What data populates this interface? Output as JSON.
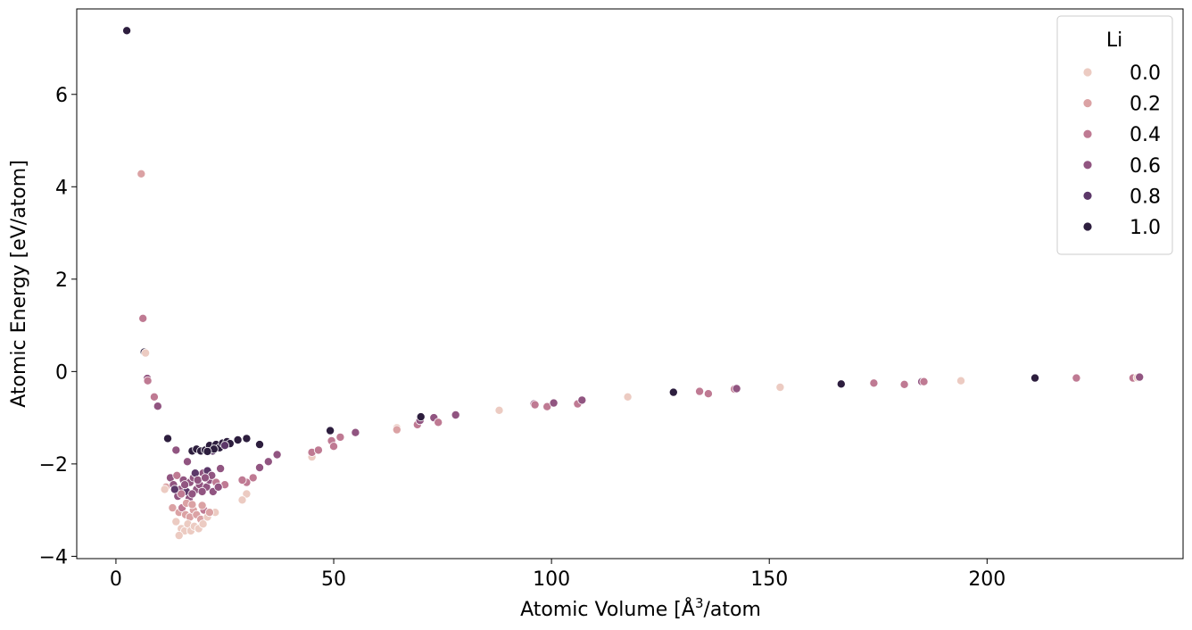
{
  "chart_data": {
    "type": "scatter",
    "xlabel_main": "Atomic Volume [Å",
    "xlabel_sup": "3",
    "xlabel_tail": "/atom",
    "ylabel": "Atomic Energy [eV/atom]",
    "xlim": [
      -9,
      245
    ],
    "ylim": [
      -4.05,
      7.85
    ],
    "xticks": [
      0,
      50,
      100,
      150,
      200
    ],
    "yticks": [
      -4,
      -2,
      0,
      2,
      4,
      6
    ],
    "ytick_labels": [
      "−4",
      "−2",
      "0",
      "2",
      "4",
      "6"
    ],
    "grid": false,
    "legend": {
      "title": "Li",
      "placement": "top-right",
      "entries": [
        {
          "label": "0.0",
          "value": 0.0,
          "color": "#eccbc2"
        },
        {
          "label": "0.2",
          "value": 0.2,
          "color": "#dba2a4"
        },
        {
          "label": "0.4",
          "value": 0.4,
          "color": "#bf7a93"
        },
        {
          "label": "0.6",
          "value": 0.6,
          "color": "#915581"
        },
        {
          "label": "0.8",
          "value": 0.8,
          "color": "#5c3869"
        },
        {
          "label": "1.0",
          "value": 1.0,
          "color": "#2d1e3e"
        }
      ]
    },
    "points": [
      [
        2.5,
        7.38,
        1.0
      ],
      [
        5.8,
        4.28,
        0.2
      ],
      [
        6.2,
        1.15,
        0.4
      ],
      [
        6.5,
        0.42,
        1.0
      ],
      [
        6.8,
        0.4,
        0.0
      ],
      [
        7.2,
        -0.15,
        0.6
      ],
      [
        7.3,
        -0.2,
        0.4
      ],
      [
        8.8,
        -0.55,
        0.4
      ],
      [
        9.6,
        -0.75,
        0.6
      ],
      [
        11.9,
        -1.45,
        1.0
      ],
      [
        11.5,
        -2.5,
        0.2
      ],
      [
        11.2,
        -2.55,
        0.0
      ],
      [
        13.8,
        -1.7,
        0.6
      ],
      [
        16.4,
        -1.95,
        0.6
      ],
      [
        12.5,
        -2.3,
        0.6
      ],
      [
        13.2,
        -2.45,
        0.6
      ],
      [
        14.0,
        -2.25,
        0.4
      ],
      [
        14.8,
        -2.55,
        0.6
      ],
      [
        15.5,
        -2.35,
        0.6
      ],
      [
        16.2,
        -2.6,
        0.8
      ],
      [
        17.0,
        -2.4,
        0.6
      ],
      [
        17.8,
        -2.3,
        0.6
      ],
      [
        18.5,
        -2.55,
        0.6
      ],
      [
        19.2,
        -2.45,
        0.6
      ],
      [
        20.0,
        -2.2,
        0.6
      ],
      [
        20.8,
        -2.5,
        0.6
      ],
      [
        21.5,
        -2.35,
        0.6
      ],
      [
        22.3,
        -2.6,
        0.6
      ],
      [
        23.0,
        -2.4,
        0.4
      ],
      [
        24.0,
        -2.1,
        0.6
      ],
      [
        25.0,
        -2.45,
        0.4
      ],
      [
        14.2,
        -2.7,
        0.6
      ],
      [
        15.0,
        -2.65,
        0.4
      ],
      [
        16.8,
        -2.75,
        0.6
      ],
      [
        17.5,
        -2.65,
        0.6
      ],
      [
        18.2,
        -2.2,
        0.8
      ],
      [
        19.8,
        -2.6,
        0.6
      ],
      [
        21.0,
        -2.15,
        0.8
      ],
      [
        22.0,
        -2.25,
        0.6
      ],
      [
        13.5,
        -2.55,
        0.8
      ],
      [
        15.8,
        -2.45,
        0.6
      ],
      [
        18.8,
        -2.35,
        0.6
      ],
      [
        20.5,
        -2.3,
        0.6
      ],
      [
        23.5,
        -2.5,
        0.6
      ],
      [
        13.0,
        -2.95,
        0.2
      ],
      [
        14.5,
        -3.05,
        0.2
      ],
      [
        15.2,
        -2.95,
        0.4
      ],
      [
        16.0,
        -3.1,
        0.2
      ],
      [
        17.0,
        -3.15,
        0.2
      ],
      [
        17.8,
        -3.0,
        0.2
      ],
      [
        18.5,
        -3.1,
        0.2
      ],
      [
        19.5,
        -3.2,
        0.2
      ],
      [
        20.2,
        -3.0,
        0.4
      ],
      [
        21.0,
        -3.15,
        0.0
      ],
      [
        22.8,
        -3.05,
        0.0
      ],
      [
        13.8,
        -3.25,
        0.0
      ],
      [
        15.0,
        -3.4,
        0.0
      ],
      [
        15.8,
        -3.45,
        0.0
      ],
      [
        16.5,
        -3.3,
        0.0
      ],
      [
        17.2,
        -3.45,
        0.0
      ],
      [
        18.0,
        -3.35,
        0.0
      ],
      [
        19.0,
        -3.4,
        0.0
      ],
      [
        20.0,
        -3.3,
        0.0
      ],
      [
        14.5,
        -3.55,
        0.0
      ],
      [
        16.2,
        -2.85,
        0.2
      ],
      [
        19.8,
        -2.9,
        0.2
      ],
      [
        21.5,
        -3.05,
        0.2
      ],
      [
        17.5,
        -2.88,
        0.2
      ],
      [
        17.5,
        -1.72,
        1.0
      ],
      [
        18.5,
        -1.68,
        1.0
      ],
      [
        19.5,
        -1.72,
        1.0
      ],
      [
        20.5,
        -1.7,
        1.0
      ],
      [
        21.5,
        -1.6,
        1.0
      ],
      [
        22.2,
        -1.72,
        0.8
      ],
      [
        23.0,
        -1.58,
        1.0
      ],
      [
        23.8,
        -1.65,
        1.0
      ],
      [
        24.5,
        -1.55,
        1.0
      ],
      [
        25.5,
        -1.52,
        1.0
      ],
      [
        26.2,
        -1.56,
        1.0
      ],
      [
        22.5,
        -1.68,
        1.0
      ],
      [
        21.0,
        -1.73,
        1.0
      ],
      [
        25.0,
        -1.6,
        0.8
      ],
      [
        28.0,
        -1.48,
        1.0
      ],
      [
        30.0,
        -1.45,
        1.0
      ],
      [
        33.0,
        -1.58,
        1.0
      ],
      [
        37.0,
        -1.8,
        0.6
      ],
      [
        35.0,
        -1.95,
        0.6
      ],
      [
        33.0,
        -2.08,
        0.6
      ],
      [
        31.5,
        -2.3,
        0.4
      ],
      [
        30.0,
        -2.4,
        0.4
      ],
      [
        29.0,
        -2.35,
        0.4
      ],
      [
        30.0,
        -2.65,
        0.0
      ],
      [
        29.0,
        -2.78,
        0.0
      ],
      [
        45.0,
        -1.85,
        0.0
      ],
      [
        45.0,
        -1.75,
        0.4
      ],
      [
        46.5,
        -1.7,
        0.4
      ],
      [
        49.2,
        -1.28,
        1.0
      ],
      [
        49.5,
        -1.5,
        0.4
      ],
      [
        50.0,
        -1.62,
        0.4
      ],
      [
        51.5,
        -1.42,
        0.4
      ],
      [
        55.0,
        -1.32,
        0.6
      ],
      [
        64.5,
        -1.22,
        0.0
      ],
      [
        64.5,
        -1.26,
        0.2
      ],
      [
        69.2,
        -1.15,
        0.4
      ],
      [
        69.8,
        -1.06,
        0.6
      ],
      [
        70.0,
        -0.98,
        1.0
      ],
      [
        73.0,
        -1.0,
        0.6
      ],
      [
        74.0,
        -1.1,
        0.4
      ],
      [
        78.0,
        -0.94,
        0.6
      ],
      [
        88.0,
        -0.84,
        0.0
      ],
      [
        96.0,
        -0.7,
        0.6
      ],
      [
        96.2,
        -0.72,
        0.4
      ],
      [
        99.0,
        -0.76,
        0.4
      ],
      [
        100.5,
        -0.68,
        0.6
      ],
      [
        106.0,
        -0.7,
        0.4
      ],
      [
        107.0,
        -0.62,
        0.6
      ],
      [
        117.5,
        -0.55,
        0.0
      ],
      [
        128.0,
        -0.45,
        1.0
      ],
      [
        134.0,
        -0.43,
        0.4
      ],
      [
        136.0,
        -0.48,
        0.4
      ],
      [
        142.0,
        -0.38,
        0.4
      ],
      [
        142.5,
        -0.37,
        0.6
      ],
      [
        152.5,
        -0.34,
        0.0
      ],
      [
        166.5,
        -0.27,
        1.0
      ],
      [
        174.0,
        -0.25,
        0.4
      ],
      [
        181.0,
        -0.28,
        0.4
      ],
      [
        185.0,
        -0.22,
        0.6
      ],
      [
        185.5,
        -0.22,
        0.4
      ],
      [
        194.0,
        -0.2,
        0.0
      ],
      [
        211.0,
        -0.14,
        1.0
      ],
      [
        220.5,
        -0.14,
        0.4
      ],
      [
        233.5,
        -0.14,
        0.4
      ],
      [
        234.5,
        -0.13,
        0.0
      ],
      [
        235.0,
        -0.12,
        0.6
      ]
    ]
  }
}
